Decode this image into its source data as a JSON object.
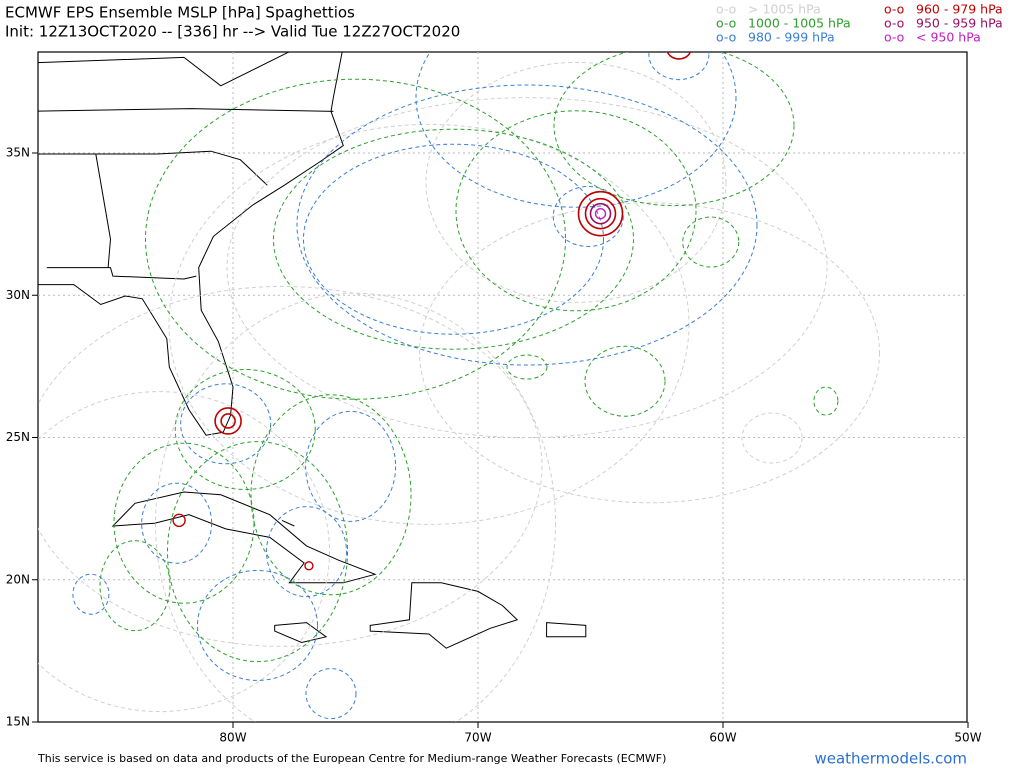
{
  "header": {
    "title": "ECMWF EPS Ensemble MSLP [hPa] Spaghettios",
    "subtitle": "Init: 12Z13OCT2020 -- [336] hr --> Valid Tue 12Z27OCT2020"
  },
  "legend": {
    "items": [
      {
        "symbol": "o-o",
        "label": "> 1005 hPa",
        "color": "#d0d0d0"
      },
      {
        "symbol": "o-o",
        "label": "1000 - 1005 hPa",
        "color": "#2ca02c"
      },
      {
        "symbol": "o-o",
        "label": "980 - 999 hPa",
        "color": "#3a7fd0"
      },
      {
        "symbol": "o-o",
        "label": "960 - 979 hPa",
        "color": "#c00000"
      },
      {
        "symbol": "o-o",
        "label": "950 - 959 hPa",
        "color": "#9a1060"
      },
      {
        "symbol": "o-o",
        "label": "< 950 hPa",
        "color": "#c020c0"
      }
    ]
  },
  "axes": {
    "lat_labels": [
      "35N",
      "30N",
      "25N",
      "20N",
      "15N"
    ],
    "lon_labels": [
      "80W",
      "70W",
      "60W",
      "50W"
    ]
  },
  "footer": {
    "credit": "This service is based on data and products of the European Centre for Medium-range Weather Forecasts (ECMWF)",
    "site": "weathermodels.com"
  }
}
